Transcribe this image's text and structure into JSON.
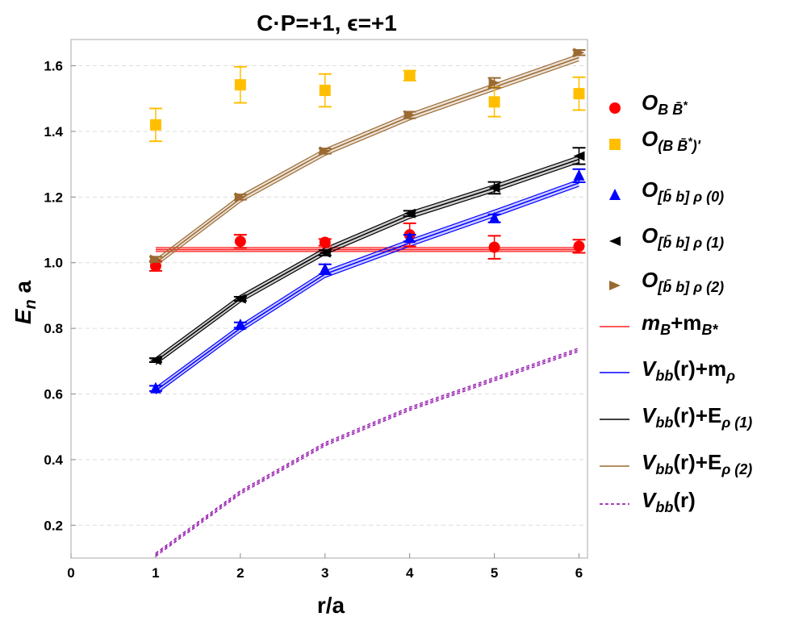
{
  "chart_data": {
    "type": "scatter",
    "title": "C·P=+1, ϵ=+1",
    "xlabel": "r/a",
    "ylabel": {
      "main": "E",
      "sub": "n",
      "suffix": " a"
    },
    "xlim": [
      0,
      6.1
    ],
    "ylim": [
      0.1,
      1.68
    ],
    "xticks": [
      0,
      1,
      2,
      3,
      4,
      5,
      6
    ],
    "yticks": [
      0.2,
      0.4,
      0.6,
      0.8,
      1.0,
      1.2,
      1.4,
      1.6
    ],
    "grid": "horizontal dashed",
    "legend_position": "right",
    "x": [
      1,
      2,
      3,
      4,
      5,
      6
    ],
    "points": [
      {
        "legend": {
          "main": "O",
          "sub": "B B̄",
          "sup": "*",
          "after": ""
        },
        "marker": "circle",
        "color": "#ff0000",
        "y": [
          0.99,
          1.065,
          1.062,
          1.085,
          1.047,
          1.05
        ],
        "err": [
          0.015,
          0.02,
          0.01,
          0.035,
          0.035,
          0.02
        ]
      },
      {
        "legend": {
          "main": "O",
          "sub": "(B B̄",
          "sup": "*",
          "after": ")'"
        },
        "marker": "square",
        "color": "#ffbf00",
        "y": [
          1.42,
          1.542,
          1.525,
          1.57,
          1.49,
          1.515
        ],
        "err": [
          0.05,
          0.055,
          0.05,
          0.015,
          0.045,
          0.05
        ]
      },
      {
        "legend": {
          "main": "O",
          "sub": "[b̄ b] ρ (0)",
          "sup": "",
          "after": ""
        },
        "marker": "triangle-up",
        "color": "#0000ff",
        "y": [
          0.617,
          0.81,
          0.98,
          1.075,
          1.135,
          1.265
        ],
        "err": [
          0.008,
          0.008,
          0.015,
          0.01,
          0.012,
          0.02
        ]
      },
      {
        "legend": {
          "main": "O",
          "sub": "[b̄ b] ρ (1)",
          "sup": "",
          "after": ""
        },
        "marker": "triangle-left",
        "color": "#000000",
        "y": [
          0.703,
          0.89,
          1.03,
          1.15,
          1.228,
          1.325
        ],
        "err": [
          0.006,
          0.006,
          0.008,
          0.008,
          0.018,
          0.025
        ]
      },
      {
        "legend": {
          "main": "O",
          "sub": "[b̄ b] ρ (2)",
          "sup": "",
          "after": ""
        },
        "marker": "triangle-right",
        "color": "#9a6a32",
        "y": [
          1.01,
          1.2,
          1.34,
          1.45,
          1.548,
          1.64
        ],
        "err": [
          0.008,
          0.008,
          0.008,
          0.01,
          0.015,
          0.008
        ]
      }
    ],
    "lines": [
      {
        "legend": {
          "p1": "m",
          "s1": "B",
          "p2": "+m",
          "s2": "B*"
        },
        "color": "#ff2020",
        "dashed": false,
        "band": 0.006,
        "y": [
          1.04,
          1.04,
          1.04,
          1.04,
          1.04,
          1.04
        ]
      },
      {
        "legend": {
          "p1": "V",
          "s1": "bb",
          "p2": "(r)+m",
          "s2": "ρ"
        },
        "color": "#0000ff",
        "dashed": false,
        "band": 0.01,
        "y": [
          0.61,
          0.8,
          0.965,
          1.06,
          1.15,
          1.243
        ]
      },
      {
        "legend": {
          "p1": "V",
          "s1": "bb",
          "p2": "(r)+E",
          "s2": "ρ (1)"
        },
        "color": "#000000",
        "dashed": false,
        "band": 0.01,
        "y": [
          0.7,
          0.89,
          1.035,
          1.145,
          1.227,
          1.315
        ]
      },
      {
        "legend": {
          "p1": "V",
          "s1": "bb",
          "p2": "(r)+E",
          "s2": "ρ (2)"
        },
        "color": "#9a6a32",
        "dashed": false,
        "band": 0.01,
        "y": [
          1.0,
          1.195,
          1.337,
          1.445,
          1.535,
          1.625
        ]
      },
      {
        "legend": {
          "p1": "V",
          "s1": "bb",
          "p2": "(r)",
          "s2": ""
        },
        "color": "#8b00a8",
        "dashed": true,
        "band": 0.005,
        "y": [
          0.11,
          0.3,
          0.447,
          0.555,
          0.645,
          0.735
        ]
      }
    ]
  }
}
